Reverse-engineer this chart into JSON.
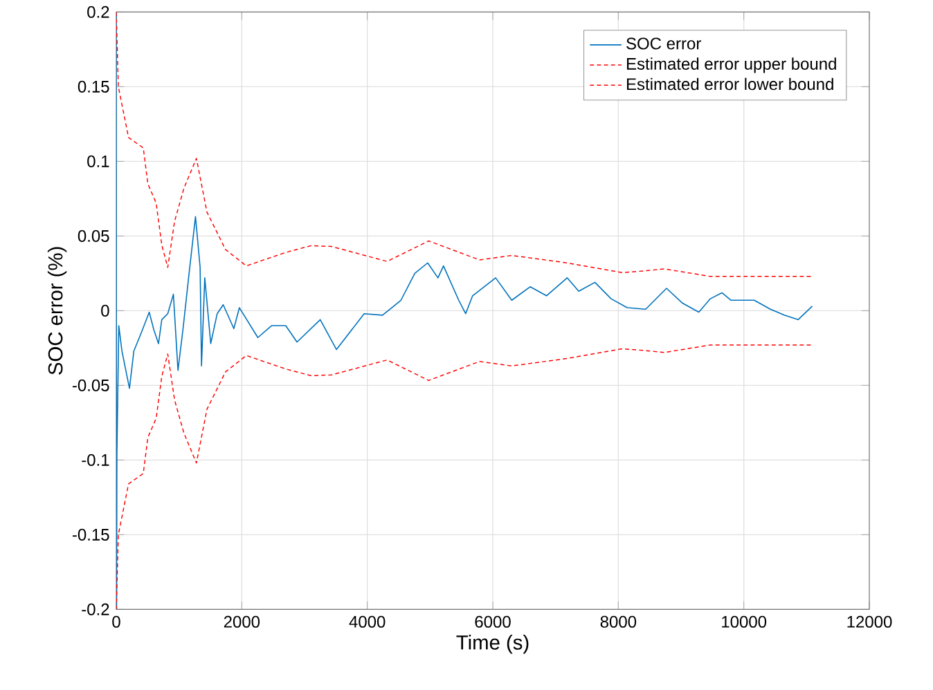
{
  "chart_data": {
    "type": "line",
    "xlabel": "Time (s)",
    "ylabel": "SOC error (%)",
    "xlim": [
      0,
      12000
    ],
    "ylim": [
      -0.2,
      0.2
    ],
    "xticks": [
      0,
      2000,
      4000,
      6000,
      8000,
      10000,
      12000
    ],
    "yticks": [
      -0.2,
      -0.15,
      -0.1,
      -0.05,
      0,
      0.05,
      0.1,
      0.15,
      0.2
    ],
    "grid": true,
    "legend": "top right",
    "series": [
      {
        "name": "SOC error",
        "color": "#0072bd",
        "line_style": "solid",
        "x": [
          0,
          5,
          10,
          40,
          90,
          210,
          280,
          415,
          525,
          600,
          673,
          725,
          820,
          910,
          983,
          1064,
          1152,
          1262,
          1336,
          1358,
          1410,
          1505,
          1608,
          1704,
          1873,
          1962,
          2256,
          2477,
          2700,
          2880,
          3250,
          3509,
          3950,
          4243,
          4536,
          4757,
          4962,
          5126,
          5214,
          5457,
          5567,
          5678,
          6045,
          6302,
          6596,
          6855,
          7185,
          7369,
          7627,
          7885,
          8141,
          8436,
          8768,
          9024,
          9283,
          9466,
          9651,
          9797,
          10166,
          10424,
          10645,
          10865,
          11090
        ],
        "values": [
          0.2,
          -0.2,
          -0.096,
          -0.01,
          -0.027,
          -0.052,
          -0.027,
          -0.013,
          -0.001,
          -0.013,
          -0.022,
          -0.006,
          -0.002,
          0.011,
          -0.04,
          -0.012,
          0.022,
          0.063,
          0.029,
          -0.037,
          0.022,
          -0.022,
          -0.002,
          0.004,
          -0.012,
          0.002,
          -0.018,
          -0.01,
          -0.01,
          -0.021,
          -0.006,
          -0.026,
          -0.002,
          -0.003,
          0.007,
          0.025,
          0.032,
          0.022,
          0.03,
          0.007,
          -0.002,
          0.01,
          0.022,
          0.007,
          0.016,
          0.01,
          0.022,
          0.013,
          0.019,
          0.008,
          0.002,
          0.001,
          0.015,
          0.005,
          -0.001,
          0.008,
          0.012,
          0.007,
          0.007,
          0.001,
          -0.003,
          -0.006,
          0.003
        ]
      },
      {
        "name": "Estimated error upper bound",
        "color": "#ff0000",
        "line_style": "dashed",
        "x": [
          0,
          33,
          195,
          430,
          503,
          636,
          725,
          820,
          930,
          1078,
          1277,
          1445,
          1740,
          2072,
          2700,
          3100,
          3430,
          4315,
          4978,
          5788,
          6302,
          7185,
          8068,
          8510,
          8731,
          9460,
          11090
        ],
        "values": [
          0.2,
          0.15,
          0.116,
          0.109,
          0.085,
          0.072,
          0.044,
          0.029,
          0.06,
          0.082,
          0.102,
          0.066,
          0.041,
          0.03,
          0.039,
          0.0435,
          0.043,
          0.033,
          0.0467,
          0.034,
          0.037,
          0.032,
          0.0255,
          0.027,
          0.028,
          0.023,
          0.023
        ]
      },
      {
        "name": "Estimated error lower bound",
        "color": "#ff0000",
        "line_style": "dashed",
        "x": [
          0,
          33,
          195,
          430,
          503,
          636,
          725,
          820,
          930,
          1078,
          1277,
          1445,
          1740,
          2072,
          2700,
          3100,
          3430,
          4315,
          4978,
          5788,
          6302,
          7185,
          8068,
          8510,
          8731,
          9460,
          11090
        ],
        "values": [
          -0.2,
          -0.15,
          -0.116,
          -0.109,
          -0.085,
          -0.072,
          -0.044,
          -0.029,
          -0.06,
          -0.082,
          -0.102,
          -0.066,
          -0.041,
          -0.03,
          -0.039,
          -0.0435,
          -0.043,
          -0.033,
          -0.0467,
          -0.034,
          -0.037,
          -0.032,
          -0.0255,
          -0.027,
          -0.028,
          -0.023,
          -0.023
        ]
      }
    ]
  }
}
